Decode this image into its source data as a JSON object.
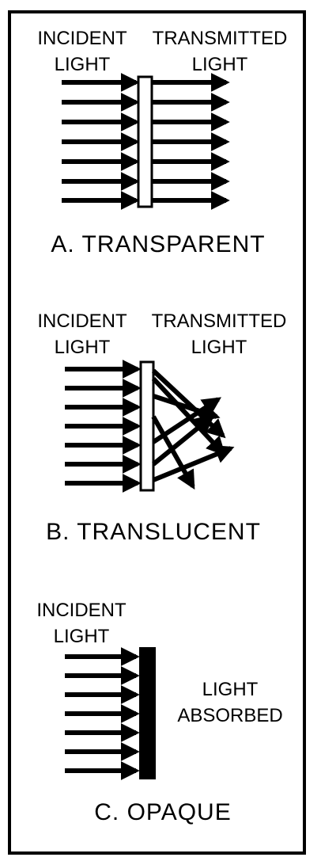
{
  "panels": {
    "transparent": {
      "incident": [
        "INCIDENT",
        "LIGHT"
      ],
      "transmitted": [
        "TRANSMITTED",
        "LIGHT"
      ],
      "caption": "A. TRANSPARENT"
    },
    "translucent": {
      "incident": [
        "INCIDENT",
        "LIGHT"
      ],
      "transmitted": [
        "TRANSMITTED",
        "LIGHT"
      ],
      "caption": "B. TRANSLUCENT"
    },
    "opaque": {
      "incident": [
        "INCIDENT",
        "LIGHT"
      ],
      "absorbed": [
        "LIGHT",
        "ABSORBED"
      ],
      "caption": "C. OPAQUE"
    }
  }
}
